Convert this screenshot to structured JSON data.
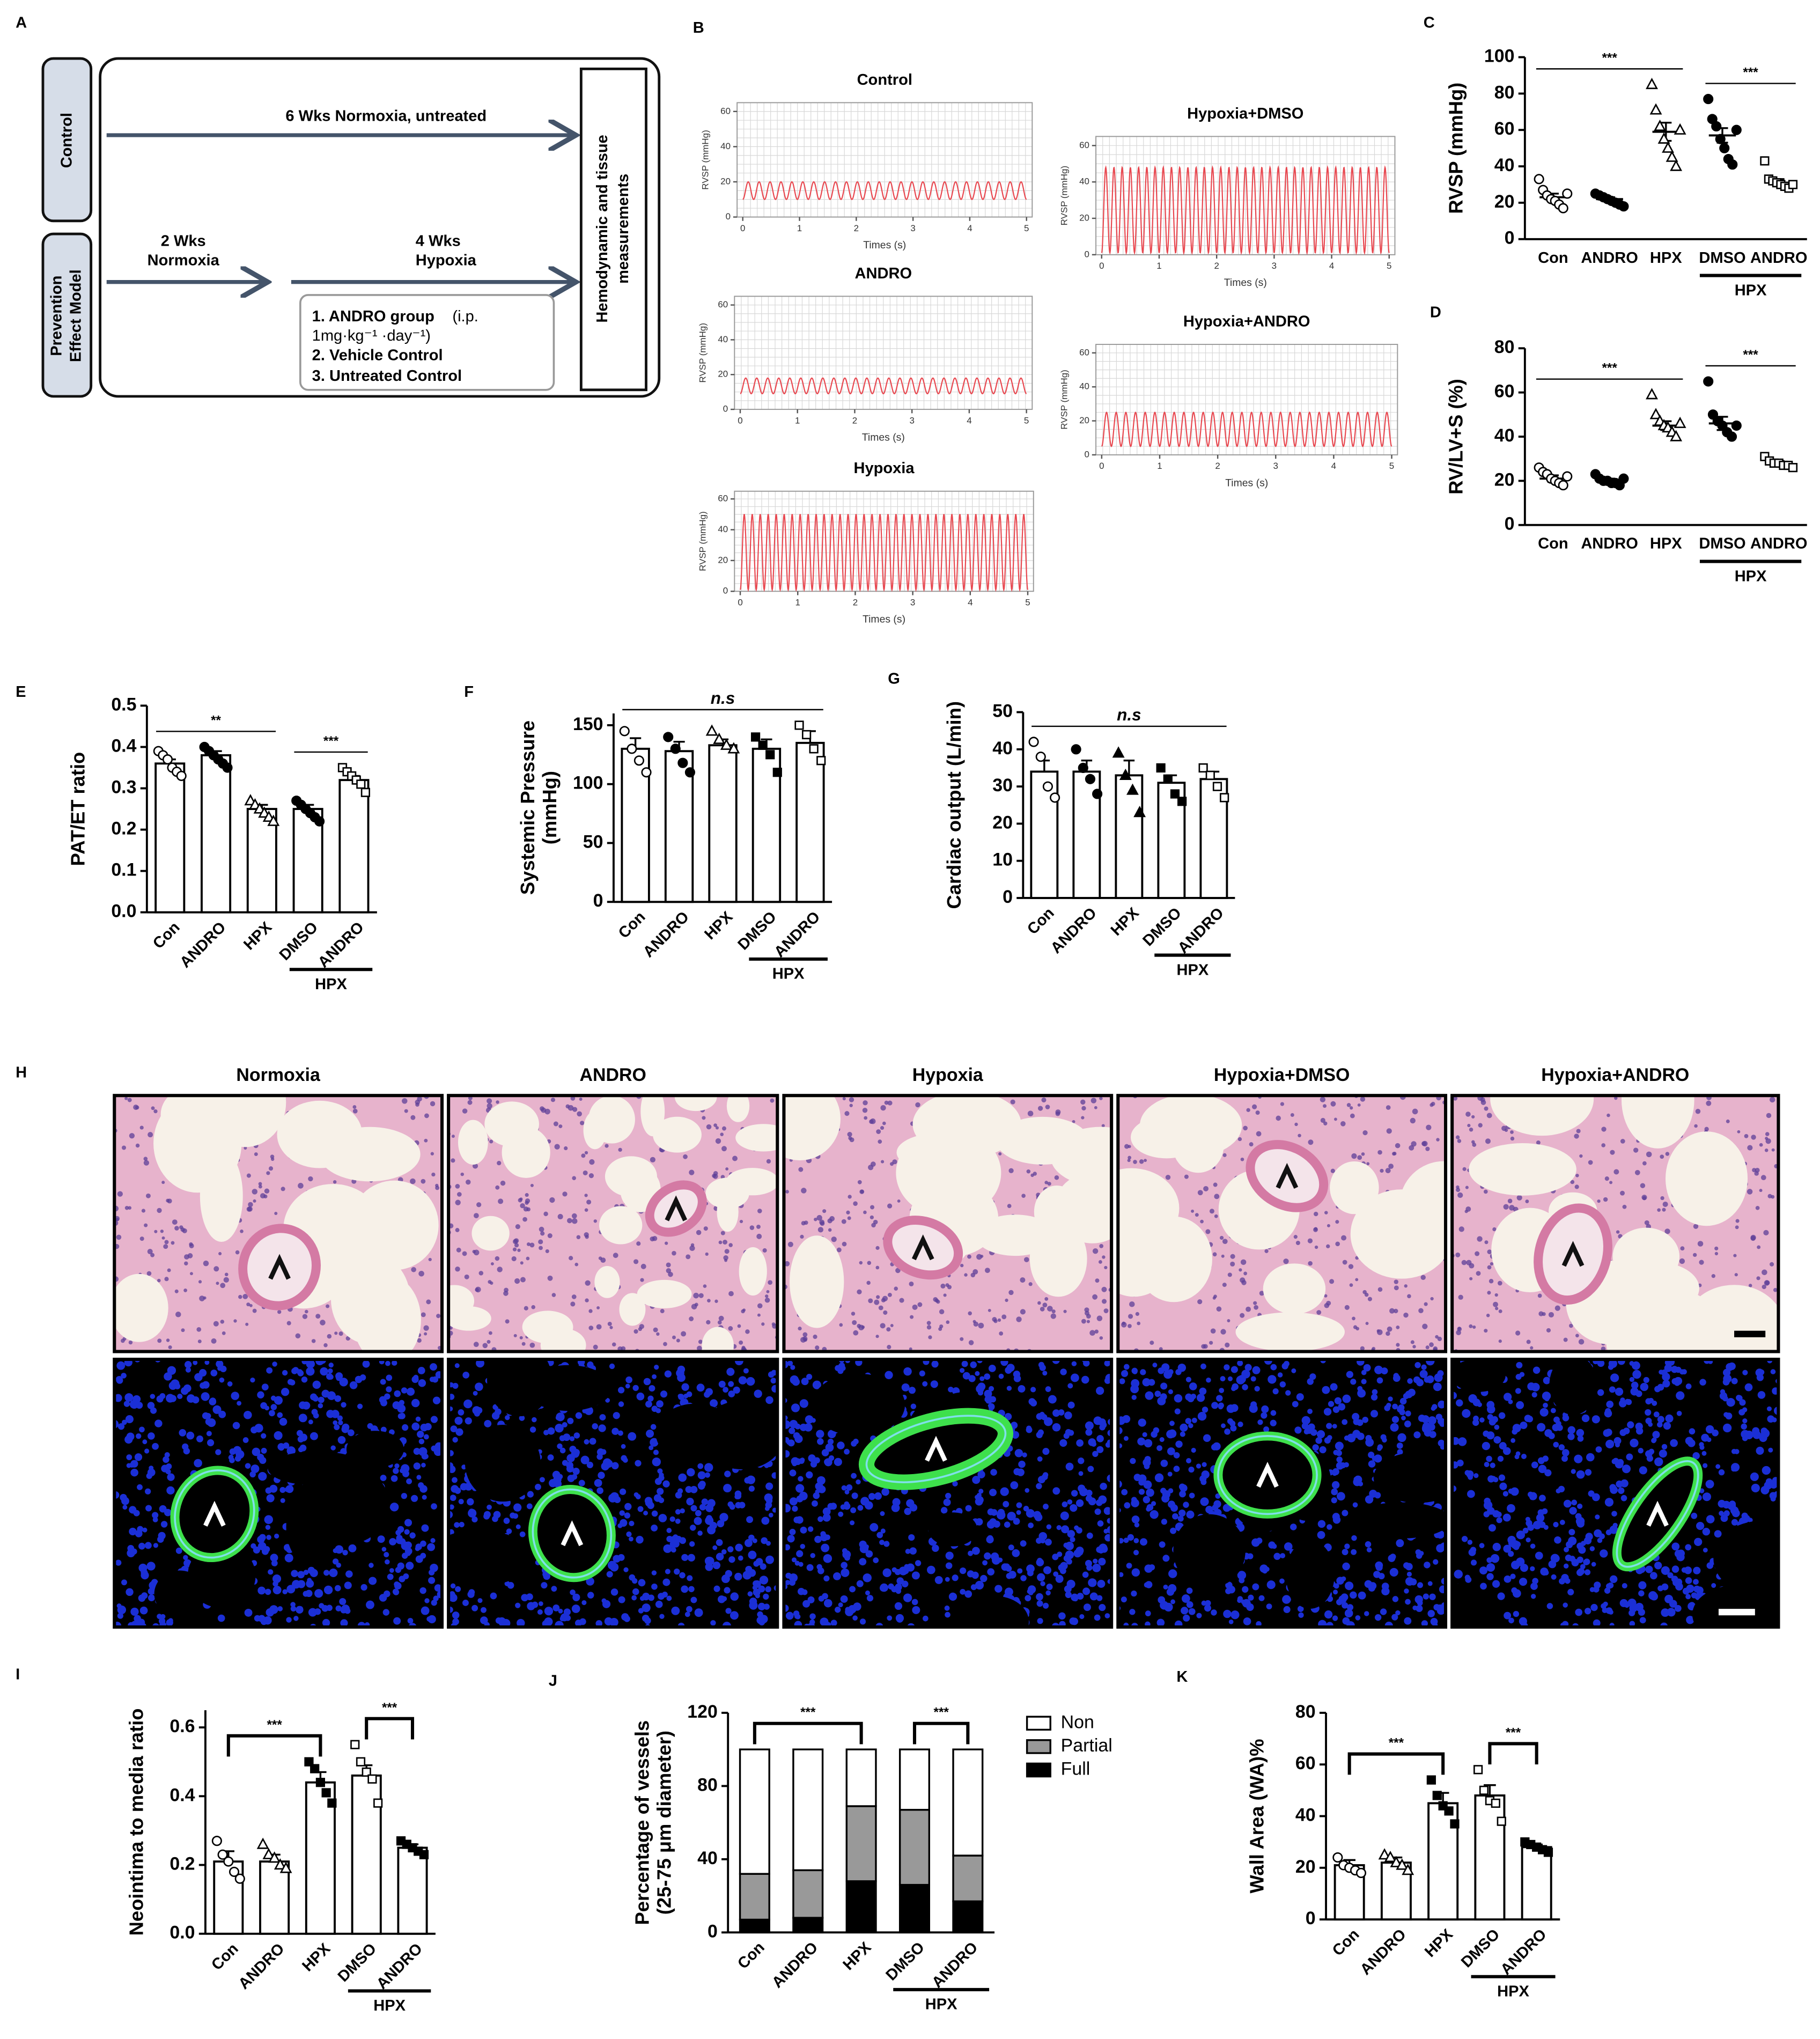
{
  "figure": {
    "panels": [
      "A",
      "B",
      "C",
      "D",
      "E",
      "F",
      "G",
      "H",
      "I",
      "J",
      "K"
    ],
    "diagram": {
      "groups": [
        "Control",
        "Prevention",
        "Effect Model"
      ],
      "control_arrow": "6 Wks Normoxia, untreated",
      "phase1": [
        "2 Wks",
        "Normoxia"
      ],
      "phase2": [
        "4 Wks",
        "Hypoxia"
      ],
      "treatments": [
        "1. ANDRO group",
        "(i.p.",
        "1mg·kg⁻¹ ·day⁻¹)",
        "2. Vehicle Control",
        "3. Untreated Control"
      ],
      "endpoint": [
        "Hemodynamic and tissue",
        "measurements"
      ]
    },
    "histology": {
      "titles": [
        "Normoxia",
        "ANDRO",
        "Hypoxia",
        "Hypoxia+DMSO",
        "Hypoxia+ANDRO"
      ]
    }
  },
  "chart_data": [
    {
      "type": "trace",
      "title": "Control",
      "ylabel": "RVSP (mmHg)",
      "xlabel": "Times (s)",
      "xlim": [
        -0.1,
        5.1
      ],
      "xticks": [
        0,
        1,
        2,
        3,
        4,
        5
      ],
      "ylim": [
        0,
        65
      ],
      "yticks": [
        0,
        20,
        40,
        60
      ],
      "trough": 10,
      "peak": 20,
      "beats": 26,
      "color": "#e8474f",
      "grid": true
    },
    {
      "type": "trace",
      "title": "ANDRO",
      "ylabel": "RVSP (mmHg)",
      "xlabel": "Times (s)",
      "xlim": [
        -0.1,
        5.1
      ],
      "xticks": [
        0,
        1,
        2,
        3,
        4,
        5
      ],
      "ylim": [
        0,
        65
      ],
      "yticks": [
        0,
        20,
        40,
        60
      ],
      "trough": 9,
      "peak": 18,
      "beats": 26,
      "color": "#e8474f",
      "grid": true
    },
    {
      "type": "trace",
      "title": "Hypoxia",
      "ylabel": "RVSP (mmHg)",
      "xlabel": "Times (s)",
      "xlim": [
        -0.1,
        5.1
      ],
      "xticks": [
        0,
        1,
        2,
        3,
        4,
        5
      ],
      "ylim": [
        0,
        65
      ],
      "yticks": [
        0,
        20,
        40,
        60
      ],
      "trough": 1,
      "peak": 50,
      "beats": 36,
      "color": "#e8474f",
      "grid": true
    },
    {
      "type": "trace",
      "title": "Hypoxia+DMSO",
      "ylabel": "RVSP (mmHg)",
      "xlabel": "Times (s)",
      "xlim": [
        -0.1,
        5.1
      ],
      "xticks": [
        0,
        1,
        2,
        3,
        4,
        5
      ],
      "ylim": [
        0,
        65
      ],
      "yticks": [
        0,
        20,
        40,
        60
      ],
      "trough": 1,
      "peak": 48,
      "beats": 35,
      "color": "#e8474f",
      "grid": true
    },
    {
      "type": "trace",
      "title": "Hypoxia+ANDRO",
      "ylabel": "RVSP (mmHg)",
      "xlabel": "Times (s)",
      "xlim": [
        -0.1,
        5.1
      ],
      "xticks": [
        0,
        1,
        2,
        3,
        4,
        5
      ],
      "ylim": [
        0,
        65
      ],
      "yticks": [
        0,
        20,
        40,
        60
      ],
      "trough": 5,
      "peak": 25,
      "beats": 30,
      "color": "#e8474f",
      "grid": true
    },
    {
      "type": "dotplot",
      "ylabel": "RVSP (mmHg)",
      "categories": [
        "Con",
        "ANDRO",
        "HPX",
        "DMSO",
        "ANDRO"
      ],
      "groups": [
        {
          "label": "HPX",
          "from": 3,
          "to": 4
        }
      ],
      "values": [
        23,
        22,
        59,
        57,
        31
      ],
      "errors": [
        2,
        1,
        5,
        4,
        2
      ],
      "points": [
        [
          33,
          27,
          24,
          22,
          21,
          19,
          17,
          25
        ],
        [
          25,
          24,
          23,
          22,
          21,
          20,
          19,
          18
        ],
        [
          85,
          71,
          62,
          55,
          50,
          45,
          40,
          60
        ],
        [
          77,
          66,
          62,
          55,
          50,
          44,
          41,
          60
        ],
        [
          43,
          33,
          32,
          31,
          30,
          29,
          28,
          30
        ]
      ],
      "markers": [
        "circle-open",
        "circle",
        "triangle-open",
        "circle",
        "square-open"
      ],
      "color": "#000000",
      "ylim": [
        0,
        100
      ],
      "yticks": [
        0,
        20,
        40,
        60,
        80,
        100
      ],
      "rotated_labels": false,
      "brackets": [
        {
          "from": 0,
          "to": 2,
          "label": "***"
        },
        {
          "from": 3,
          "to": 4,
          "label": "***"
        }
      ],
      "bracket_style": "plain"
    },
    {
      "type": "dotplot",
      "ylabel": "RV/LV+S (%)",
      "categories": [
        "Con",
        "ANDRO",
        "HPX",
        "DMSO",
        "ANDRO"
      ],
      "groups": [
        {
          "label": "HPX",
          "from": 3,
          "to": 4
        }
      ],
      "values": [
        21,
        20,
        45,
        46,
        28
      ],
      "errors": [
        1.5,
        1,
        2,
        3,
        1
      ],
      "points": [
        [
          26,
          24,
          23,
          21,
          20,
          19,
          18,
          22
        ],
        [
          23,
          21,
          20,
          20,
          19,
          19,
          18,
          21
        ],
        [
          59,
          50,
          47,
          45,
          44,
          42,
          40,
          46
        ],
        [
          65,
          50,
          47,
          45,
          42,
          40,
          45
        ],
        [
          31,
          29,
          28,
          28,
          27,
          27,
          26
        ]
      ],
      "markers": [
        "circle-open",
        "circle",
        "triangle-open",
        "circle",
        "square-open"
      ],
      "color": "#000000",
      "ylim": [
        0,
        80
      ],
      "yticks": [
        0,
        20,
        40,
        60,
        80
      ],
      "rotated_labels": false,
      "brackets": [
        {
          "from": 0,
          "to": 2,
          "label": "***"
        },
        {
          "from": 3,
          "to": 4,
          "label": "***"
        }
      ],
      "bracket_style": "plain"
    },
    {
      "type": "bar",
      "ylabel": "PAT/ET ratio",
      "categories": [
        "Con",
        "ANDRO",
        "HPX",
        "DMSO",
        "ANDRO"
      ],
      "groups": [
        {
          "label": "HPX",
          "from": 3,
          "to": 4
        }
      ],
      "values": [
        0.36,
        0.38,
        0.25,
        0.25,
        0.32
      ],
      "errors": [
        0.01,
        0.01,
        0.01,
        0.01,
        0.01
      ],
      "points": [
        [
          0.39,
          0.38,
          0.37,
          0.35,
          0.34,
          0.33
        ],
        [
          0.4,
          0.39,
          0.38,
          0.37,
          0.36,
          0.35
        ],
        [
          0.27,
          0.26,
          0.25,
          0.24,
          0.23,
          0.22
        ],
        [
          0.27,
          0.26,
          0.25,
          0.24,
          0.23,
          0.22
        ],
        [
          0.35,
          0.34,
          0.33,
          0.32,
          0.31,
          0.29
        ]
      ],
      "markers": [
        "circle-open",
        "circle",
        "triangle-open",
        "circle",
        "square-open"
      ],
      "color": "#ffffff",
      "ylim": [
        0,
        0.5
      ],
      "yticks": [
        {
          "value": 0,
          "label": "0.0"
        },
        0.1,
        0.2,
        0.3,
        0.4,
        0.5
      ],
      "rotated_labels": true,
      "brackets": [
        {
          "from": 0,
          "to": 2,
          "label": "**"
        },
        {
          "from": 3,
          "to": 4,
          "label": "***"
        }
      ],
      "bracket_style": "plain"
    },
    {
      "type": "bar",
      "ylabel": [
        "Systemic Pressure",
        "(mmHg)"
      ],
      "categories": [
        "Con",
        "ANDRO",
        "HPX",
        "DMSO",
        "ANDRO"
      ],
      "groups": [
        {
          "label": "HPX",
          "from": 3,
          "to": 4
        }
      ],
      "values": [
        130,
        128,
        133,
        130,
        135
      ],
      "errors": [
        9,
        8,
        5,
        8,
        10
      ],
      "points": [
        [
          145,
          130,
          120,
          110
        ],
        [
          140,
          130,
          118,
          110
        ],
        [
          145,
          138,
          133,
          130
        ],
        [
          140,
          133,
          125,
          110
        ],
        [
          150,
          142,
          130,
          120
        ]
      ],
      "markers": [
        "circle-open",
        "circle",
        "triangle-open",
        "square",
        "square-open"
      ],
      "color": "#ffffff",
      "ylim": [
        0,
        160
      ],
      "yticks": [
        0,
        50,
        100,
        150
      ],
      "rotated_labels": true,
      "brackets": [
        {
          "from": 0,
          "to": 4,
          "label": "n.s",
          "italic": true
        }
      ],
      "bracket_style": "plain"
    },
    {
      "type": "bar",
      "ylabel": "Cardiac output (L/min)",
      "categories": [
        "Con",
        "ANDRO",
        "HPX",
        "DMSO",
        "ANDRO"
      ],
      "groups": [
        {
          "label": "HPX",
          "from": 3,
          "to": 4
        }
      ],
      "values": [
        34,
        34,
        33,
        31,
        32
      ],
      "errors": [
        3,
        3,
        4,
        2,
        2
      ],
      "points": [
        [
          42,
          38,
          30,
          27
        ],
        [
          40,
          35,
          32,
          28
        ],
        [
          39,
          33,
          29,
          23
        ],
        [
          35,
          32,
          28,
          26
        ],
        [
          35,
          33,
          30,
          27
        ]
      ],
      "markers": [
        "circle-open",
        "circle",
        "triangle",
        "square",
        "square-open"
      ],
      "color": "#ffffff",
      "ylim": [
        0,
        50
      ],
      "yticks": [
        0,
        10,
        20,
        30,
        40,
        50
      ],
      "rotated_labels": true,
      "brackets": [
        {
          "from": 0,
          "to": 4,
          "label": "n.s",
          "italic": true
        }
      ],
      "bracket_style": "plain"
    },
    {
      "type": "bar",
      "ylabel": "Neointima to media ratio",
      "categories": [
        "Con",
        "ANDRO",
        "HPX",
        "DMSO",
        "ANDRO"
      ],
      "groups": [
        {
          "label": "HPX",
          "from": 3,
          "to": 4
        }
      ],
      "values": [
        0.21,
        0.21,
        0.44,
        0.46,
        0.25
      ],
      "errors": [
        0.03,
        0.02,
        0.03,
        0.03,
        0.01
      ],
      "points": [
        [
          0.27,
          0.23,
          0.21,
          0.18,
          0.16
        ],
        [
          0.26,
          0.23,
          0.22,
          0.2,
          0.19
        ],
        [
          0.5,
          0.48,
          0.44,
          0.41,
          0.38
        ],
        [
          0.55,
          0.5,
          0.47,
          0.45,
          0.38
        ],
        [
          0.27,
          0.26,
          0.25,
          0.24,
          0.23
        ]
      ],
      "markers": [
        "circle-open",
        "triangle-open",
        "square",
        "square-open",
        "square"
      ],
      "color": "#ffffff",
      "ylim": [
        0,
        0.65
      ],
      "yticks": [
        {
          "value": 0,
          "label": "0.0"
        },
        0.2,
        0.4,
        0.6
      ],
      "rotated_labels": true,
      "brackets": [
        {
          "from": 0,
          "to": 2,
          "label": "***"
        },
        {
          "from": 3,
          "to": 4,
          "label": "***"
        }
      ],
      "bracket_style": "hook"
    },
    {
      "type": "stacked_bar",
      "ylabel": [
        "Percentage of vessels",
        "(25-75 μm diameter)"
      ],
      "categories": [
        "Con",
        "ANDRO",
        "HPX",
        "DMSO",
        "ANDRO"
      ],
      "groups": [
        {
          "label": "HPX",
          "from": 3,
          "to": 4
        }
      ],
      "series": [
        {
          "name": "Full",
          "color": "#000000",
          "values": [
            7,
            8,
            28,
            26,
            17
          ]
        },
        {
          "name": "Partial",
          "color": "#999999",
          "values": [
            25,
            26,
            41,
            41,
            25
          ]
        },
        {
          "name": "Non",
          "color": "#ffffff",
          "values": [
            68,
            66,
            31,
            33,
            58
          ]
        }
      ],
      "ylim": [
        0,
        120
      ],
      "yticks": [
        0,
        40,
        80,
        120
      ],
      "rotated_labels": true,
      "legend": "right",
      "brackets": [
        {
          "from": 0,
          "to": 2,
          "label": "***"
        },
        {
          "from": 3,
          "to": 4,
          "label": "***"
        }
      ],
      "bracket_style": "hook"
    },
    {
      "type": "bar",
      "ylabel": "Wall Area (WA)%",
      "categories": [
        "Con",
        "ANDRO",
        "HPX",
        "DMSO",
        "ANDRO"
      ],
      "groups": [
        {
          "label": "HPX",
          "from": 3,
          "to": 4
        }
      ],
      "values": [
        21,
        22,
        45,
        48,
        28
      ],
      "errors": [
        2,
        2,
        4,
        4,
        1
      ],
      "points": [
        [
          24,
          21,
          20,
          19,
          18
        ],
        [
          25,
          24,
          22,
          21,
          19
        ],
        [
          54,
          48,
          44,
          42,
          37
        ],
        [
          58,
          50,
          46,
          45,
          38
        ],
        [
          30,
          29,
          28,
          27,
          26
        ]
      ],
      "markers": [
        "circle-open",
        "triangle-open",
        "square",
        "square-open",
        "square"
      ],
      "color": "#ffffff",
      "ylim": [
        0,
        80
      ],
      "yticks": [
        0,
        20,
        40,
        60,
        80
      ],
      "rotated_labels": true,
      "brackets": [
        {
          "from": 0,
          "to": 2,
          "label": "***"
        },
        {
          "from": 3,
          "to": 4,
          "label": "***"
        }
      ],
      "bracket_style": "hook"
    }
  ]
}
